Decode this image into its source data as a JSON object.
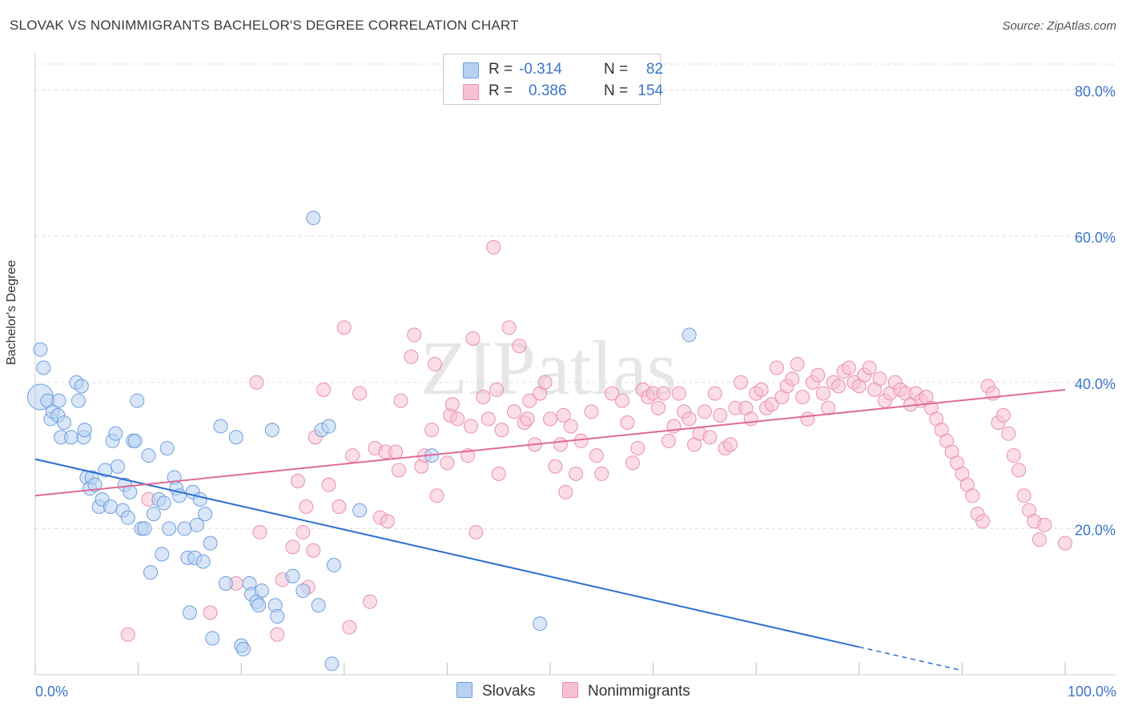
{
  "title": "SLOVAK VS NONIMMIGRANTS BACHELOR'S DEGREE CORRELATION CHART",
  "source": "Source: ZipAtlas.com",
  "watermark": "ZIPatlas",
  "legend": {
    "rows": [
      {
        "r_label": "R =",
        "r_value": "-0.314",
        "n_label": "N =",
        "n_value": "82"
      },
      {
        "r_label": "R =",
        "r_value": "0.386",
        "n_label": "N =",
        "n_value": "154"
      }
    ]
  },
  "bottom_legend": {
    "series1": "Slovaks",
    "series2": "Nonimmigrants"
  },
  "colors": {
    "slovak_fill": "#b8d1f3",
    "slovak_stroke": "#6f9fdc",
    "slovak_line": "#2b6fd0",
    "nonimm_fill": "#f7c1d3",
    "nonimm_stroke": "#e98fb0",
    "nonimm_line": "#e06a95",
    "tick_label": "#3b74cc",
    "grid": "#dddddd"
  },
  "chart_data": {
    "type": "scatter",
    "title": "SLOVAK VS NONIMMIGRANTS BACHELOR'S DEGREE CORRELATION CHART",
    "xlabel": "",
    "ylabel": "Bachelor's Degree",
    "xlim": [
      0,
      100
    ],
    "ylim": [
      0,
      84
    ],
    "x_tick_labels": [
      "0.0%",
      "100.0%"
    ],
    "y_ticks": [
      20,
      40,
      60,
      80
    ],
    "y_tick_labels": [
      "20.0%",
      "40.0%",
      "60.0%",
      "80.0%"
    ],
    "series": [
      {
        "name": "Slovaks",
        "r": -0.314,
        "n": 82,
        "trend": {
          "x0": 0,
          "y0": 29.5,
          "x1": 80,
          "y1": 3.8,
          "dash_to_x": 90
        },
        "points": [
          [
            0.5,
            38.0
          ],
          [
            0.5,
            44.5
          ],
          [
            0.8,
            42.0
          ],
          [
            1.2,
            37.5
          ],
          [
            1.5,
            35.0
          ],
          [
            1.7,
            36.0
          ],
          [
            2.2,
            35.5
          ],
          [
            2.3,
            37.5
          ],
          [
            2.5,
            32.5
          ],
          [
            2.8,
            34.5
          ],
          [
            3.5,
            32.5
          ],
          [
            4.0,
            40.0
          ],
          [
            4.2,
            37.5
          ],
          [
            4.5,
            39.5
          ],
          [
            4.7,
            32.5
          ],
          [
            4.8,
            33.5
          ],
          [
            5.0,
            27.0
          ],
          [
            5.3,
            25.5
          ],
          [
            5.5,
            27.0
          ],
          [
            5.8,
            26.0
          ],
          [
            6.2,
            23.0
          ],
          [
            6.5,
            24.0
          ],
          [
            6.8,
            28.0
          ],
          [
            7.3,
            23.0
          ],
          [
            7.5,
            32.0
          ],
          [
            7.8,
            33.0
          ],
          [
            8.0,
            28.5
          ],
          [
            8.5,
            22.5
          ],
          [
            8.7,
            26.0
          ],
          [
            9.0,
            21.5
          ],
          [
            9.2,
            25.0
          ],
          [
            9.5,
            32.0
          ],
          [
            9.7,
            32.0
          ],
          [
            9.9,
            37.5
          ],
          [
            10.3,
            20.0
          ],
          [
            10.6,
            20.0
          ],
          [
            11.0,
            30.0
          ],
          [
            11.2,
            14.0
          ],
          [
            11.5,
            22.0
          ],
          [
            12.0,
            24.0
          ],
          [
            12.3,
            16.5
          ],
          [
            12.5,
            23.5
          ],
          [
            12.8,
            31.0
          ],
          [
            13.0,
            20.0
          ],
          [
            13.5,
            27.0
          ],
          [
            13.7,
            25.5
          ],
          [
            14.0,
            24.5
          ],
          [
            14.5,
            20.0
          ],
          [
            14.8,
            16.0
          ],
          [
            15.0,
            8.5
          ],
          [
            15.3,
            25.0
          ],
          [
            15.5,
            16.0
          ],
          [
            15.7,
            20.5
          ],
          [
            16.0,
            24.0
          ],
          [
            16.3,
            15.5
          ],
          [
            16.5,
            22.0
          ],
          [
            17.0,
            18.0
          ],
          [
            17.2,
            5.0
          ],
          [
            18.0,
            34.0
          ],
          [
            18.5,
            12.5
          ],
          [
            19.5,
            32.5
          ],
          [
            20.0,
            4.0
          ],
          [
            20.2,
            3.5
          ],
          [
            20.8,
            12.5
          ],
          [
            21.0,
            11.0
          ],
          [
            21.5,
            10.0
          ],
          [
            21.7,
            9.5
          ],
          [
            22.0,
            11.5
          ],
          [
            23.0,
            33.5
          ],
          [
            23.3,
            9.5
          ],
          [
            23.5,
            8.0
          ],
          [
            25.0,
            13.5
          ],
          [
            26.0,
            11.5
          ],
          [
            27.0,
            62.5
          ],
          [
            27.5,
            9.5
          ],
          [
            27.8,
            33.5
          ],
          [
            28.5,
            34.0
          ],
          [
            28.8,
            1.5
          ],
          [
            29.0,
            15.0
          ],
          [
            31.5,
            22.5
          ],
          [
            38.5,
            30.0
          ],
          [
            49.0,
            7.0
          ],
          [
            63.5,
            46.5
          ]
        ]
      },
      {
        "name": "Nonimmigrants",
        "r": 0.386,
        "n": 154,
        "trend": {
          "x0": 0,
          "y0": 24.5,
          "x1": 100,
          "y1": 39.0
        },
        "points": [
          [
            9.0,
            5.5
          ],
          [
            11.0,
            24.0
          ],
          [
            17.0,
            8.5
          ],
          [
            19.5,
            12.5
          ],
          [
            21.5,
            40.0
          ],
          [
            21.8,
            19.5
          ],
          [
            23.5,
            5.5
          ],
          [
            24.0,
            13.0
          ],
          [
            25.0,
            17.5
          ],
          [
            25.5,
            26.5
          ],
          [
            26.0,
            19.5
          ],
          [
            26.3,
            23.0
          ],
          [
            26.5,
            12.0
          ],
          [
            27.0,
            17.0
          ],
          [
            27.2,
            32.5
          ],
          [
            28.0,
            39.0
          ],
          [
            28.5,
            26.0
          ],
          [
            29.5,
            23.0
          ],
          [
            30.0,
            47.5
          ],
          [
            30.5,
            6.5
          ],
          [
            30.8,
            30.0
          ],
          [
            31.5,
            38.5
          ],
          [
            32.5,
            10.0
          ],
          [
            33.0,
            31.0
          ],
          [
            33.5,
            21.5
          ],
          [
            34.0,
            30.5
          ],
          [
            34.2,
            21.0
          ],
          [
            35.0,
            30.5
          ],
          [
            35.3,
            28.0
          ],
          [
            35.5,
            37.5
          ],
          [
            36.5,
            43.5
          ],
          [
            36.8,
            46.5
          ],
          [
            37.5,
            28.5
          ],
          [
            37.8,
            30.0
          ],
          [
            38.5,
            33.5
          ],
          [
            38.8,
            42.5
          ],
          [
            39.0,
            24.5
          ],
          [
            40.0,
            29.0
          ],
          [
            40.3,
            35.5
          ],
          [
            40.5,
            37.0
          ],
          [
            41.0,
            35.0
          ],
          [
            42.0,
            30.0
          ],
          [
            42.3,
            34.0
          ],
          [
            42.5,
            46.0
          ],
          [
            42.8,
            19.5
          ],
          [
            43.5,
            38.0
          ],
          [
            44.0,
            35.0
          ],
          [
            44.5,
            58.5
          ],
          [
            44.8,
            39.0
          ],
          [
            45.0,
            27.5
          ],
          [
            45.3,
            33.5
          ],
          [
            46.0,
            47.5
          ],
          [
            46.5,
            36.0
          ],
          [
            47.0,
            45.0
          ],
          [
            47.5,
            34.5
          ],
          [
            47.8,
            35.0
          ],
          [
            48.0,
            37.5
          ],
          [
            48.5,
            31.5
          ],
          [
            49.0,
            38.5
          ],
          [
            49.5,
            40.0
          ],
          [
            50.0,
            35.0
          ],
          [
            50.5,
            28.5
          ],
          [
            51.0,
            31.5
          ],
          [
            51.3,
            35.5
          ],
          [
            51.5,
            25.0
          ],
          [
            52.0,
            34.0
          ],
          [
            52.5,
            27.5
          ],
          [
            53.0,
            32.0
          ],
          [
            54.0,
            36.0
          ],
          [
            54.5,
            30.0
          ],
          [
            55.0,
            27.5
          ],
          [
            56.0,
            38.5
          ],
          [
            57.0,
            37.5
          ],
          [
            57.5,
            34.5
          ],
          [
            58.0,
            29.0
          ],
          [
            58.5,
            31.0
          ],
          [
            59.0,
            39.0
          ],
          [
            59.5,
            38.0
          ],
          [
            60.0,
            38.5
          ],
          [
            60.5,
            36.5
          ],
          [
            61.0,
            38.5
          ],
          [
            61.5,
            32.0
          ],
          [
            62.0,
            34.0
          ],
          [
            62.5,
            38.5
          ],
          [
            63.0,
            36.0
          ],
          [
            63.5,
            35.0
          ],
          [
            64.0,
            31.5
          ],
          [
            64.5,
            33.0
          ],
          [
            65.0,
            36.0
          ],
          [
            65.5,
            32.5
          ],
          [
            66.0,
            38.5
          ],
          [
            66.5,
            35.5
          ],
          [
            67.0,
            31.0
          ],
          [
            67.5,
            31.5
          ],
          [
            68.0,
            36.5
          ],
          [
            68.5,
            40.0
          ],
          [
            69.0,
            36.5
          ],
          [
            69.5,
            35.0
          ],
          [
            70.0,
            38.5
          ],
          [
            70.5,
            39.0
          ],
          [
            71.0,
            36.5
          ],
          [
            71.5,
            37.0
          ],
          [
            72.0,
            42.0
          ],
          [
            72.5,
            38.0
          ],
          [
            73.0,
            39.5
          ],
          [
            73.5,
            40.5
          ],
          [
            74.0,
            42.5
          ],
          [
            74.5,
            38.0
          ],
          [
            75.0,
            35.0
          ],
          [
            75.5,
            40.0
          ],
          [
            76.0,
            41.0
          ],
          [
            76.5,
            38.5
          ],
          [
            77.0,
            36.5
          ],
          [
            77.5,
            40.0
          ],
          [
            78.0,
            39.5
          ],
          [
            78.5,
            41.5
          ],
          [
            79.0,
            42.0
          ],
          [
            79.5,
            40.0
          ],
          [
            80.0,
            39.5
          ],
          [
            80.5,
            41.0
          ],
          [
            81.0,
            42.0
          ],
          [
            81.5,
            39.0
          ],
          [
            82.0,
            40.5
          ],
          [
            82.5,
            37.5
          ],
          [
            83.0,
            38.5
          ],
          [
            83.5,
            40.0
          ],
          [
            84.0,
            39.0
          ],
          [
            84.5,
            38.5
          ],
          [
            85.0,
            37.0
          ],
          [
            85.5,
            38.5
          ],
          [
            86.0,
            37.5
          ],
          [
            86.5,
            38.0
          ],
          [
            87.0,
            36.5
          ],
          [
            87.5,
            35.0
          ],
          [
            88.0,
            33.5
          ],
          [
            88.5,
            32.0
          ],
          [
            89.0,
            30.5
          ],
          [
            89.5,
            29.0
          ],
          [
            90.0,
            27.5
          ],
          [
            90.5,
            26.0
          ],
          [
            91.0,
            24.5
          ],
          [
            91.5,
            22.0
          ],
          [
            92.0,
            21.0
          ],
          [
            92.5,
            39.5
          ],
          [
            93.0,
            38.5
          ],
          [
            93.5,
            34.5
          ],
          [
            94.0,
            35.5
          ],
          [
            94.5,
            33.0
          ],
          [
            95.0,
            30.0
          ],
          [
            95.5,
            28.0
          ],
          [
            96.0,
            24.5
          ],
          [
            96.5,
            22.5
          ],
          [
            97.0,
            21.0
          ],
          [
            97.5,
            18.5
          ],
          [
            98.0,
            20.5
          ],
          [
            100.0,
            18.0
          ]
        ]
      }
    ]
  }
}
